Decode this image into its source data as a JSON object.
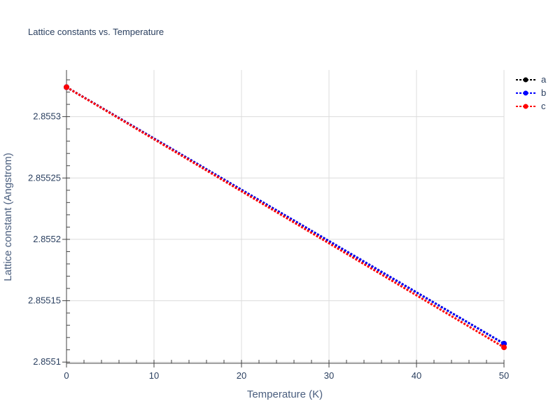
{
  "chart_data": {
    "type": "line",
    "title": "Lattice constants vs. Temperature",
    "xlabel": "Temperature (K)",
    "ylabel": "Lattice constant (Angstrom)",
    "xlim": [
      0,
      50
    ],
    "ylim": [
      2.855099,
      2.855338
    ],
    "x_ticks": [
      0,
      10,
      20,
      30,
      40,
      50
    ],
    "x_tick_labels": [
      "0",
      "10",
      "20",
      "30",
      "40",
      "50"
    ],
    "y_ticks": [
      2.8551,
      2.85515,
      2.8552,
      2.85525,
      2.8553
    ],
    "y_tick_labels": [
      "2.8551",
      "2.85515",
      "2.8552",
      "2.85525",
      "2.8553"
    ],
    "grid": true,
    "legend_position": "top-right",
    "series": [
      {
        "name": "a",
        "color": "#000000",
        "x": [
          0,
          50
        ],
        "y": [
          2.855324,
          2.855115
        ]
      },
      {
        "name": "b",
        "color": "#0000ff",
        "x": [
          0,
          50
        ],
        "y": [
          2.855324,
          2.855115
        ]
      },
      {
        "name": "c",
        "color": "#ff0000",
        "x": [
          0,
          50
        ],
        "y": [
          2.855324,
          2.855112
        ]
      }
    ]
  }
}
